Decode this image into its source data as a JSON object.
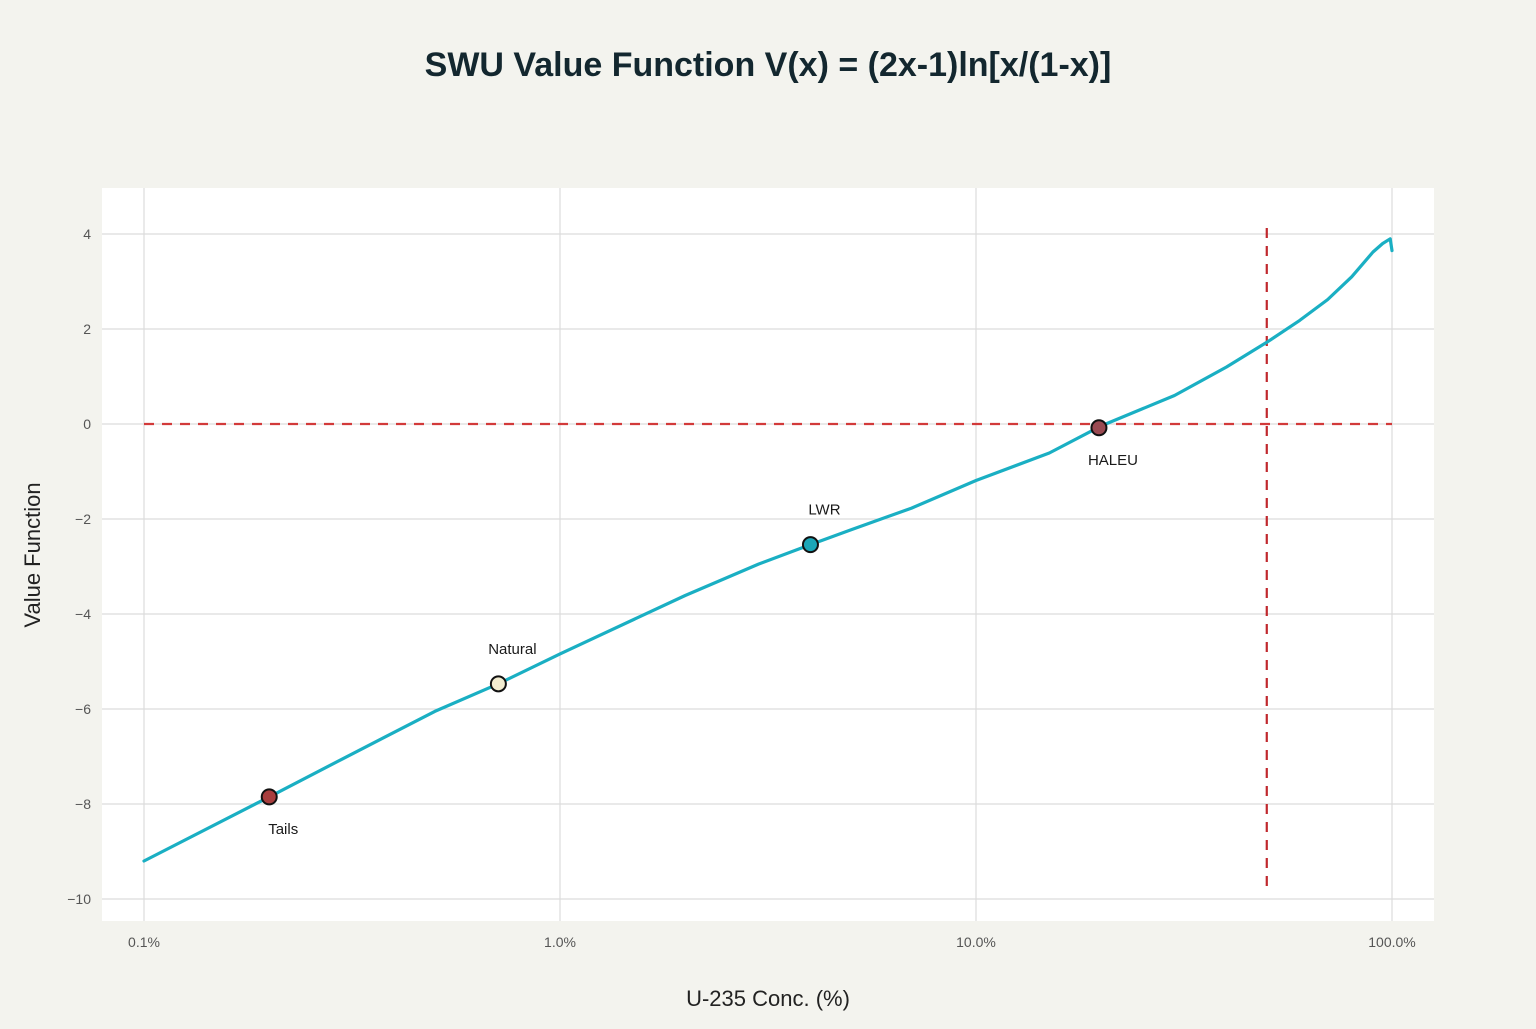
{
  "chart_data": {
    "type": "line",
    "title": "SWU Value Function V(x) = (2x-1)ln[x/(1-x)]",
    "xlabel": "U-235 Conc. (%)",
    "ylabel": "Value Function",
    "x_scale": "log",
    "xlim": [
      0.1,
      100
    ],
    "ylim": [
      -10,
      4.5
    ],
    "x_ticks": [
      0.1,
      1,
      10,
      100
    ],
    "x_tick_labels": [
      "0.1%",
      "1.0%",
      "10.0%",
      "100.0%"
    ],
    "y_ticks": [
      -10,
      -8,
      -6,
      -4,
      -2,
      0,
      2,
      4
    ],
    "y_tick_labels": [
      "−10",
      "−8",
      "−6",
      "−4",
      "−2",
      "0",
      "2",
      "4"
    ],
    "grid": true,
    "series": [
      {
        "color": "#1aafc3",
        "x": [
          0.1,
          0.2,
          0.3,
          0.5,
          0.711,
          1,
          2,
          3,
          4,
          5,
          7,
          10,
          15,
          20,
          30,
          40,
          50,
          60,
          70,
          80,
          90,
          95,
          99,
          100
        ],
        "y": [
          -9.2,
          -7.85,
          -7.05,
          -6.05,
          -5.47,
          -4.84,
          -3.61,
          -2.95,
          -2.54,
          -2.23,
          -1.77,
          -1.19,
          -0.61,
          -0.04,
          0.6,
          1.2,
          1.72,
          2.18,
          2.62,
          3.1,
          3.62,
          3.8,
          3.9,
          3.65
        ]
      }
    ],
    "markers": [
      {
        "label": "Tails",
        "x": 0.2,
        "y": -7.85,
        "color": "#a83e3e",
        "label_position": "below"
      },
      {
        "label": "Natural",
        "x": 0.711,
        "y": -5.47,
        "color": "#f2ecd0",
        "label_position": "above"
      },
      {
        "label": "LWR",
        "x": 4,
        "y": -2.54,
        "color": "#1aa6b7",
        "label_position": "above"
      },
      {
        "label": "HALEU",
        "x": 19.75,
        "y": -0.08,
        "color": "#9a4a52",
        "label_position": "below"
      }
    ],
    "reference_lines": [
      {
        "orientation": "horizontal",
        "value": 0,
        "color": "#d23a3a",
        "style": "dashed"
      },
      {
        "orientation": "vertical",
        "value": 50,
        "color": "#c0282d",
        "style": "dashed"
      }
    ]
  }
}
